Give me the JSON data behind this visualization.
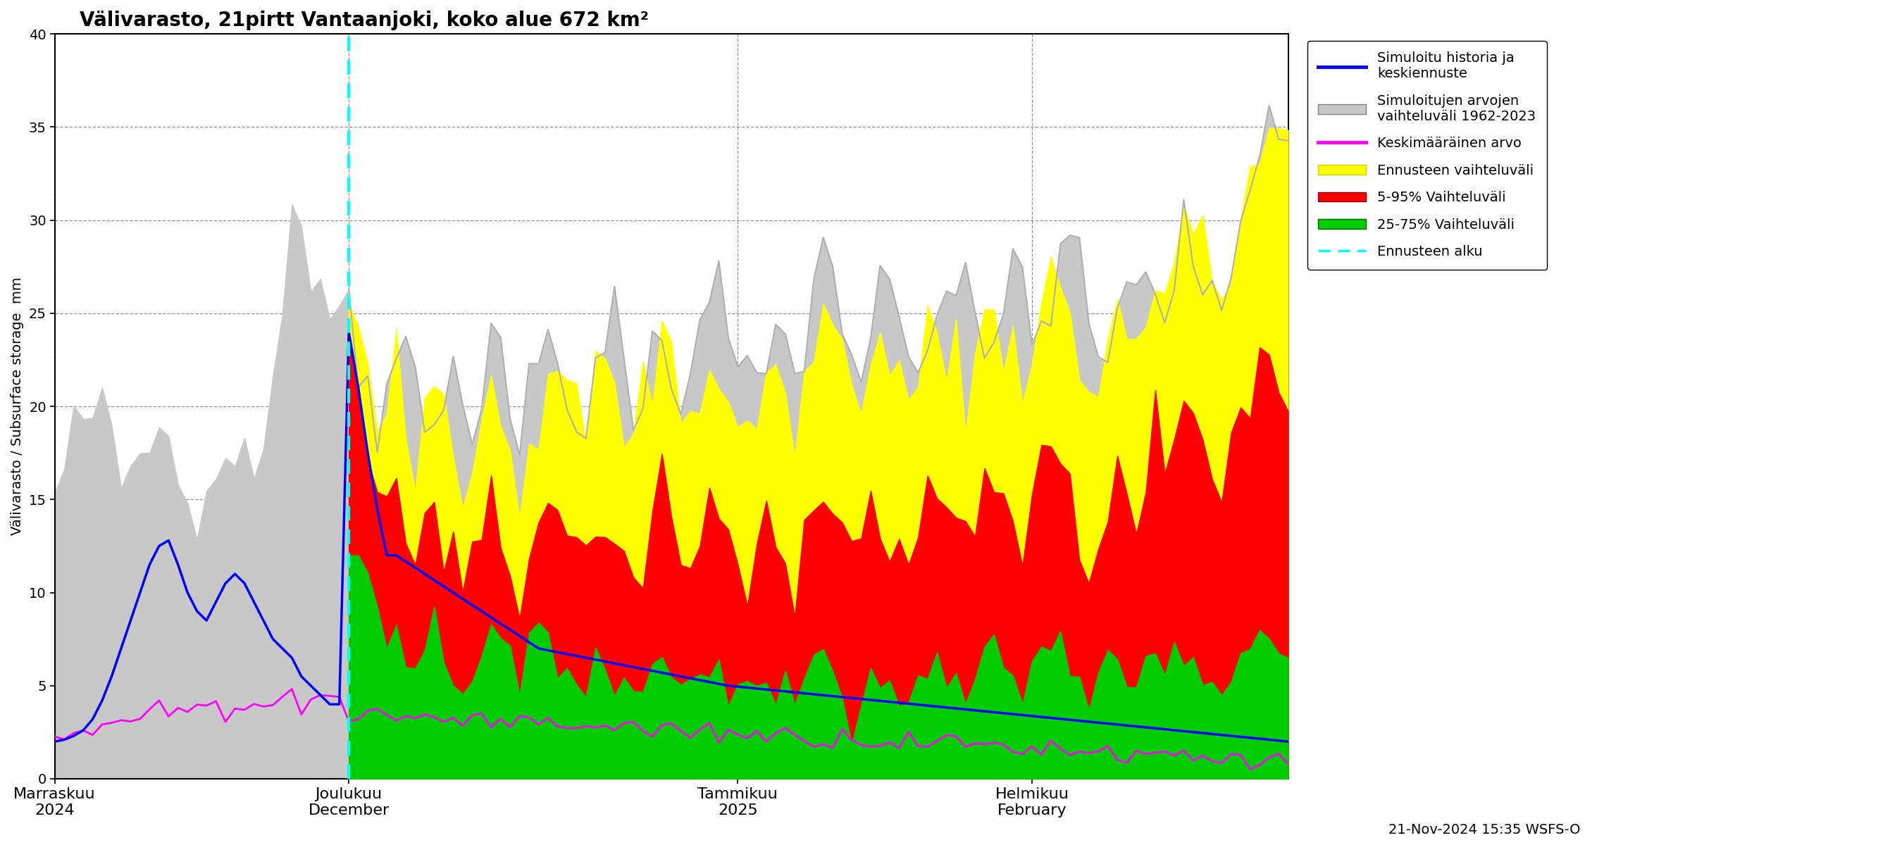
{
  "title": "Välivarasto, 21pirtt Vantaanjoki, koko alue 672 km²",
  "ylabel": "Välivarasto / Subsurface storage  mm",
  "ylim": [
    0,
    40
  ],
  "yticks": [
    0,
    5,
    10,
    15,
    20,
    25,
    30,
    35,
    40
  ],
  "footer_text": "21-Nov-2024 15:35 WSFS-O",
  "colors": {
    "blue_line": "#0000FF",
    "gray_fill": "#C8C8C8",
    "gray_line": "#B0B0B0",
    "magenta_line": "#FF00FF",
    "yellow_fill": "#FFFF00",
    "red_fill": "#FF0000",
    "green_fill": "#00CC00",
    "cyan_dashed": "#00FFFF"
  },
  "legend_labels": [
    "Simuloitu historia ja\nkeskiennuste",
    "Simuloitujen arvojen\nvaihteluväli 1962-2023",
    "Keskimääräinen arvo",
    "Ennusteen vaihteluväli",
    "5-95% Vaihteluväli",
    "25-75% Vaihteluväli",
    "Ennusteen alku"
  ],
  "n_total_days": 131,
  "forecast_day": 31,
  "xtick_pos": [
    0,
    31,
    72,
    103
  ],
  "xtick_labels": [
    "Marraskuu\n2024",
    "Joulukuu\nDecember",
    "Tammikuu\n2025",
    "Helmikuu\nFebruary"
  ]
}
